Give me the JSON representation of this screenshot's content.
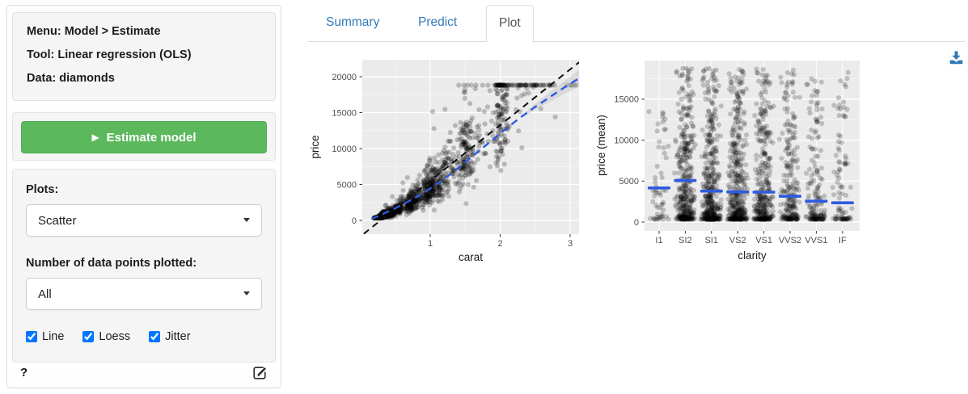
{
  "sidebar": {
    "info": {
      "menu": "Menu: Model > Estimate",
      "tool": "Tool: Linear regression (OLS)",
      "data": "Data: diamonds"
    },
    "estimate_button": {
      "label": "Estimate model",
      "icon": "play",
      "color": "#5cb85c"
    },
    "plots_label": "Plots:",
    "plots_select": {
      "value": "Scatter"
    },
    "npoints_label": "Number of data points plotted:",
    "npoints_select": {
      "value": "All"
    },
    "checkboxes": [
      {
        "label": "Line",
        "checked": true
      },
      {
        "label": "Loess",
        "checked": true
      },
      {
        "label": "Jitter",
        "checked": true
      }
    ],
    "help_icon": "?",
    "edit_icon": "pencil-square"
  },
  "tabs": [
    {
      "label": "Summary",
      "active": false
    },
    {
      "label": "Predict",
      "active": false
    },
    {
      "label": "Plot",
      "active": true
    }
  ],
  "download_icon": "download",
  "colors": {
    "link_blue": "#337ab7",
    "button_green": "#5cb85c",
    "loess_blue": "#2E5BE0",
    "panel_gray": "#EBEBEB",
    "tick_text": "#4d4d4d"
  },
  "chart_data": [
    {
      "type": "scatter",
      "title": "",
      "xlabel": "carat",
      "ylabel": "price",
      "x_ticks": [
        1,
        2,
        3
      ],
      "x_minor_ticks": [
        0.5,
        1.5,
        2.5
      ],
      "y_ticks": [
        0,
        5000,
        10000,
        15000,
        20000
      ],
      "y_minor_ticks": [
        2500,
        7500,
        12500,
        17500
      ],
      "xlim": [
        0.03,
        3.13
      ],
      "ylim": [
        -1900,
        22300
      ],
      "grid": true,
      "panel_bg": "#EBEBEB",
      "n_points": 1400,
      "point_alpha": 0.22,
      "trend_linear": {
        "name": "linear",
        "style": "dashed",
        "color": "#0d0d0d",
        "intercept": -2256,
        "slope": 7756
      },
      "trend_loess": {
        "name": "loess",
        "style": "dashed",
        "color": "#2E5BE0",
        "points": [
          [
            0.16,
            200
          ],
          [
            0.3,
            800
          ],
          [
            0.5,
            1700
          ],
          [
            0.7,
            2700
          ],
          [
            0.9,
            3800
          ],
          [
            1.1,
            5100
          ],
          [
            1.3,
            6500
          ],
          [
            1.5,
            8100
          ],
          [
            1.7,
            9700
          ],
          [
            1.9,
            11300
          ],
          [
            2.1,
            12900
          ],
          [
            2.3,
            14400
          ],
          [
            2.5,
            15800
          ],
          [
            2.7,
            17100
          ],
          [
            2.9,
            18400
          ],
          [
            3.05,
            19300
          ],
          [
            3.13,
            19800
          ]
        ]
      },
      "ribbon": {
        "from": 2.35,
        "to": 3.13,
        "halfwidth_start": 250,
        "halfwidth_end": 1150,
        "color": "#c9c9c9"
      },
      "carat_clusters": [
        [
          0.3,
          14,
          0.05
        ],
        [
          0.32,
          8,
          0.03
        ],
        [
          0.4,
          10,
          0.04
        ],
        [
          0.5,
          9,
          0.05
        ],
        [
          0.55,
          4,
          0.04
        ],
        [
          0.7,
          9,
          0.035
        ],
        [
          0.8,
          5,
          0.04
        ],
        [
          0.9,
          4,
          0.05
        ],
        [
          1.0,
          11,
          0.05
        ],
        [
          1.1,
          4,
          0.06
        ],
        [
          1.2,
          6,
          0.07
        ],
        [
          1.35,
          3,
          0.07
        ],
        [
          1.5,
          10,
          0.05
        ],
        [
          1.6,
          3,
          0.05
        ],
        [
          1.75,
          2.5,
          0.08
        ],
        [
          2.0,
          9,
          0.05
        ],
        [
          2.1,
          3,
          0.06
        ],
        [
          2.3,
          2,
          0.08
        ],
        [
          2.5,
          1.5,
          0.07
        ],
        [
          2.7,
          0.6,
          0.08
        ],
        [
          3.0,
          0.5,
          0.04
        ]
      ]
    },
    {
      "type": "jitter-scatter",
      "title": "",
      "xlabel": "clarity",
      "ylabel": "price (mean)",
      "categories": [
        "I1",
        "SI2",
        "SI1",
        "VS2",
        "VS1",
        "VVS2",
        "VVS1",
        "IF"
      ],
      "means": [
        4160,
        5070,
        3780,
        3680,
        3650,
        3150,
        2540,
        2350
      ],
      "counts": [
        55,
        380,
        420,
        400,
        330,
        220,
        160,
        90
      ],
      "max_values": [
        13500,
        18800,
        18800,
        18800,
        18700,
        18700,
        17500,
        18300
      ],
      "density_exp": [
        2.2,
        2.6,
        3.0,
        2.9,
        2.8,
        2.6,
        3.2,
        3.0
      ],
      "y_ticks": [
        0,
        5000,
        10000,
        15000
      ],
      "y_minor_ticks": [
        2500,
        7500,
        12500,
        17500
      ],
      "ylim": [
        -1085,
        19700
      ],
      "grid": true,
      "panel_bg": "#EBEBEB",
      "mean_bar_color": "#2E5BE0",
      "point_alpha": 0.2
    }
  ]
}
